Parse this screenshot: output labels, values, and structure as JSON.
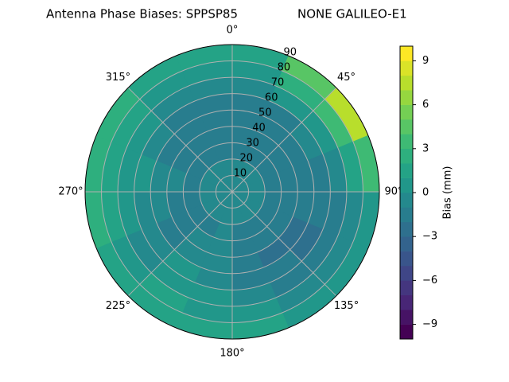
{
  "chart_data": {
    "type": "polar-contour",
    "title": "Antenna Phase Biases: SPPSP85",
    "subtitle": "NONE GALILEO-E1",
    "azimuth_edges": [
      0,
      22.5,
      45,
      67.5,
      90,
      112.5,
      135,
      157.5,
      180,
      202.5,
      225,
      247.5,
      270,
      292.5,
      315,
      337.5,
      360
    ],
    "zenith_edges": [
      0,
      10,
      20,
      30,
      40,
      50,
      60,
      70,
      80,
      90
    ],
    "values": [
      [
        -1,
        -1,
        -1.5,
        -2,
        -2,
        -1.5,
        -1,
        0,
        1
      ],
      [
        -1,
        -1,
        -1.5,
        -2,
        -2,
        -1.5,
        0,
        2,
        4
      ],
      [
        -1,
        -1,
        -1.5,
        -2,
        -1.5,
        -1,
        0,
        3,
        7
      ],
      [
        -1,
        -1,
        -1.5,
        -2,
        -2,
        -1.5,
        -1,
        1,
        3
      ],
      [
        -1,
        -1,
        -1.5,
        -2,
        -2,
        -2,
        -1.5,
        -1,
        0
      ],
      [
        -1,
        -1,
        -2,
        -2,
        -2.5,
        -2.5,
        -2,
        -1,
        0
      ],
      [
        -1,
        -1,
        -2,
        -2,
        -2.5,
        -2,
        -1.5,
        -1,
        0
      ],
      [
        -1,
        -1,
        -1.5,
        -2,
        -2,
        -1.5,
        -1,
        0,
        1
      ],
      [
        -1,
        -1,
        -1,
        -1,
        -0.5,
        -0.5,
        0,
        0,
        1
      ],
      [
        -1,
        -1,
        -1.5,
        -1,
        -0.5,
        0,
        0,
        1,
        1
      ],
      [
        -1,
        -1,
        -1.5,
        -2,
        -1.5,
        -1,
        -0.5,
        0,
        1
      ],
      [
        -1,
        -1,
        -1.5,
        -1.5,
        -1,
        -0.5,
        0,
        1,
        2
      ],
      [
        -1,
        -1,
        -1.5,
        -1,
        -0.5,
        0,
        0,
        1,
        2
      ],
      [
        -1,
        -1,
        -1.5,
        -2,
        -1.5,
        -1,
        0,
        1,
        2
      ],
      [
        -1,
        -1,
        -1.5,
        -2,
        -2,
        -1.5,
        -0.5,
        0.5,
        1.5
      ],
      [
        -1,
        -1,
        -1.5,
        -2,
        -2,
        -1.5,
        -1,
        0,
        1
      ]
    ],
    "rlim": [
      0,
      90
    ],
    "rticks": [
      10,
      20,
      30,
      40,
      50,
      60,
      70,
      80,
      90
    ],
    "thetaticks": [
      {
        "value": 0,
        "label": "0°"
      },
      {
        "value": 45,
        "label": "45°"
      },
      {
        "value": 90,
        "label": "90°"
      },
      {
        "value": 135,
        "label": "135°"
      },
      {
        "value": 180,
        "label": "180°"
      },
      {
        "value": 225,
        "label": "225°"
      },
      {
        "value": 270,
        "label": "270°"
      },
      {
        "value": 315,
        "label": "315°"
      }
    ],
    "colormap": "viridis",
    "levels": [
      -10,
      -9,
      -8,
      -7,
      -6,
      -5,
      -4,
      -3,
      -2,
      -1,
      0,
      1,
      2,
      3,
      4,
      5,
      6,
      7,
      8,
      9,
      10
    ],
    "clim": [
      -10,
      10
    ],
    "cticks": [
      {
        "value": -9,
        "label": "−9"
      },
      {
        "value": -6,
        "label": "−6"
      },
      {
        "value": -3,
        "label": "−3"
      },
      0,
      3,
      6,
      9
    ],
    "colorbar_label": "Bias (mm)",
    "grid": true
  }
}
